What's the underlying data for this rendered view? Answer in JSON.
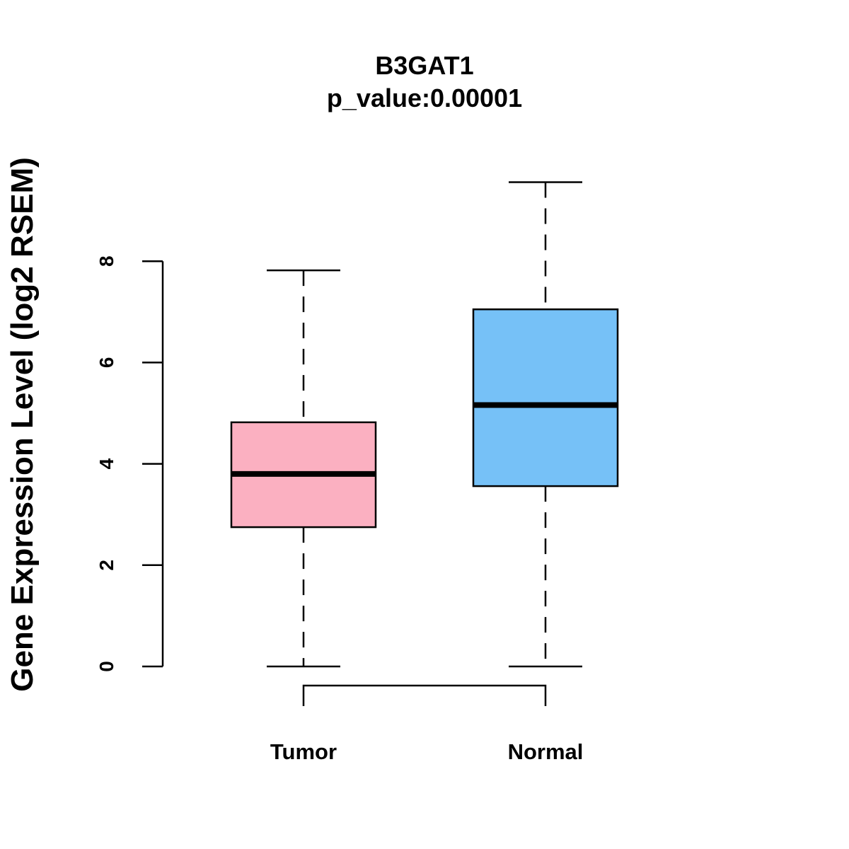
{
  "chart_data": {
    "type": "box",
    "title": "B3GAT1",
    "subtitle": "p_value:0.00001",
    "xlabel": "",
    "ylabel": "Gene Expression Level (log2 RSEM)",
    "ylim": [
      0,
      8
    ],
    "yticks": [
      0,
      2,
      4,
      6,
      8
    ],
    "grid": false,
    "groups": [
      {
        "name": "Tumor",
        "color": "#FBB0C1",
        "whisker_low": 0,
        "q1": 2.75,
        "median": 3.8,
        "q3": 4.82,
        "whisker_high": 7.82
      },
      {
        "name": "Normal",
        "color": "#76C1F7",
        "whisker_low": 0,
        "q1": 3.56,
        "median": 5.16,
        "q3": 7.05,
        "whisker_high": 9.56
      }
    ],
    "comparison_bracket": {
      "between": [
        "Tumor",
        "Normal"
      ]
    }
  }
}
